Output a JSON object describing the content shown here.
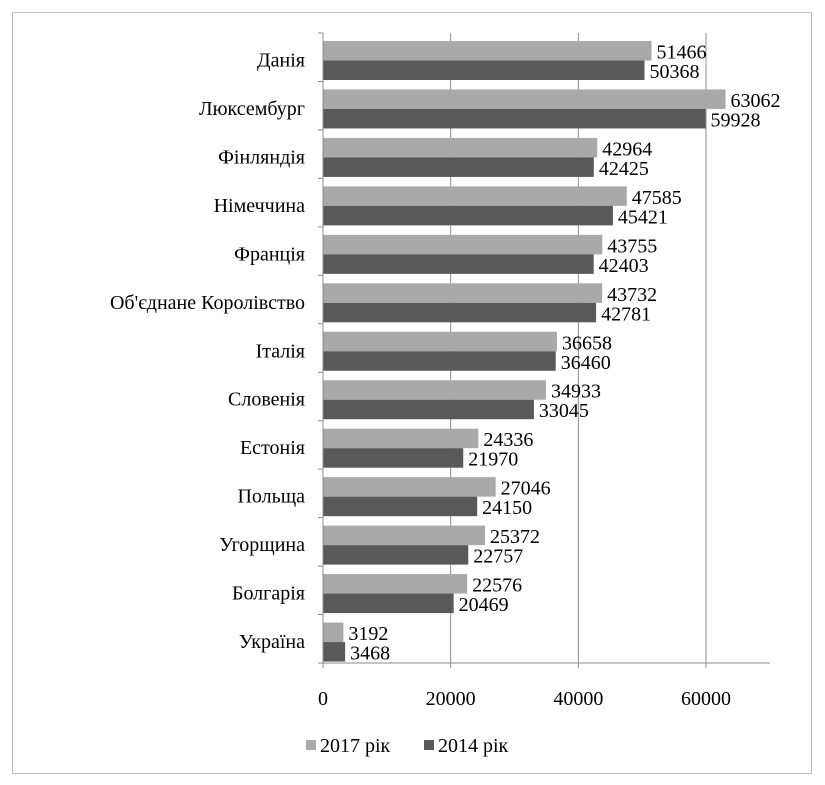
{
  "chart_data": {
    "type": "bar",
    "orientation": "horizontal",
    "categories": [
      "Данія",
      "Люксембург",
      "Фінляндія",
      "Німеччина",
      "Франція",
      "Об'єднане Королівство",
      "Італія",
      "Словенія",
      "Естонія",
      "Польща",
      "Угорщина",
      "Болгарія",
      "Україна"
    ],
    "series": [
      {
        "name": "2017 рік",
        "color": "#a9a9a9",
        "values": [
          51466,
          63062,
          42964,
          47585,
          43755,
          43732,
          36658,
          34933,
          24336,
          27046,
          25372,
          22576,
          3192
        ]
      },
      {
        "name": "2014 рік",
        "color": "#595959",
        "values": [
          50368,
          59928,
          42425,
          45421,
          42403,
          42781,
          36460,
          33045,
          21970,
          24150,
          22757,
          20469,
          3468
        ]
      }
    ],
    "xlim": [
      0,
      70000
    ],
    "xticks": [
      0,
      20000,
      40000,
      60000
    ],
    "xtick_labels": [
      "0",
      "20000",
      "40000",
      "60000"
    ],
    "grid": "vertical",
    "legend": "bottom",
    "title": "",
    "xlabel": "",
    "ylabel": ""
  }
}
